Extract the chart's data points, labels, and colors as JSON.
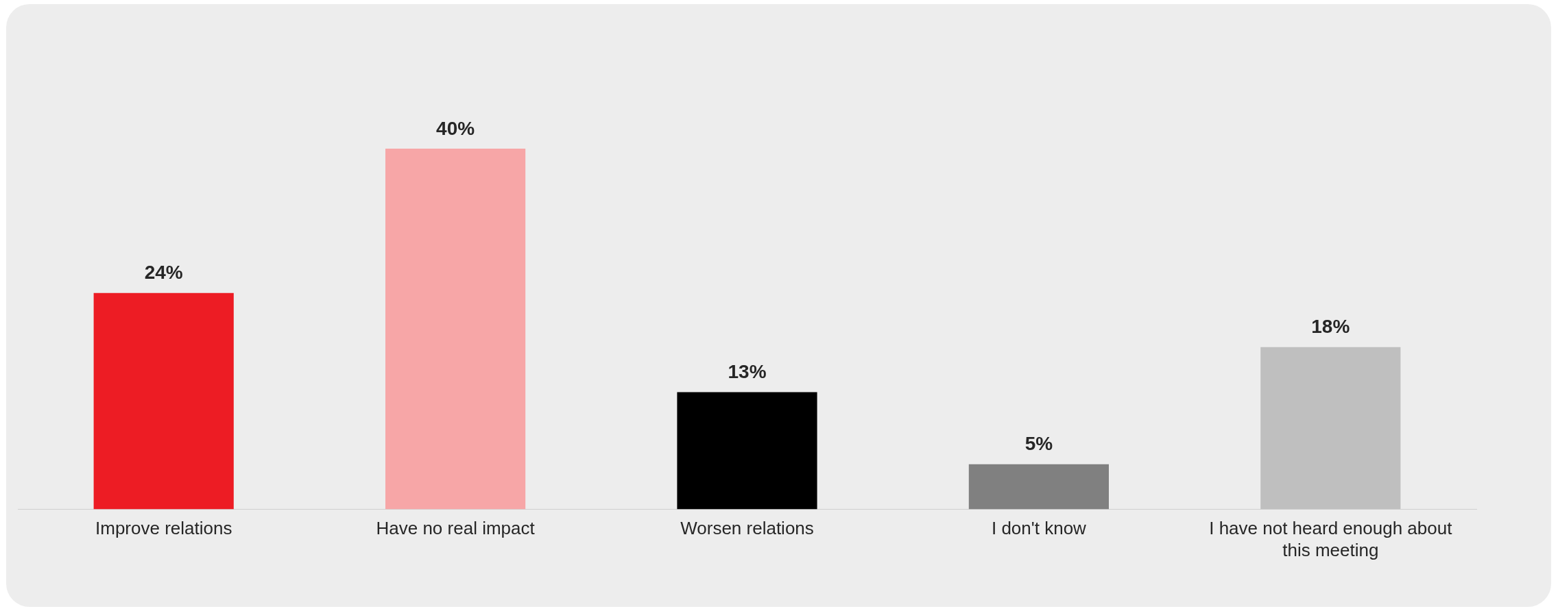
{
  "chart_data": {
    "type": "bar",
    "categories": [
      "Improve relations",
      "Have no real impact",
      "Worsen relations",
      "I don't know",
      "I have not heard enough about this meeting"
    ],
    "values": [
      24,
      40,
      13,
      5,
      18
    ],
    "colors": [
      "#ed1c24",
      "#f7a6a7",
      "#000000",
      "#808080",
      "#bfbfbf"
    ],
    "value_labels": [
      "24%",
      "40%",
      "13%",
      "5%",
      "18%"
    ],
    "grid": false,
    "legend": false
  }
}
